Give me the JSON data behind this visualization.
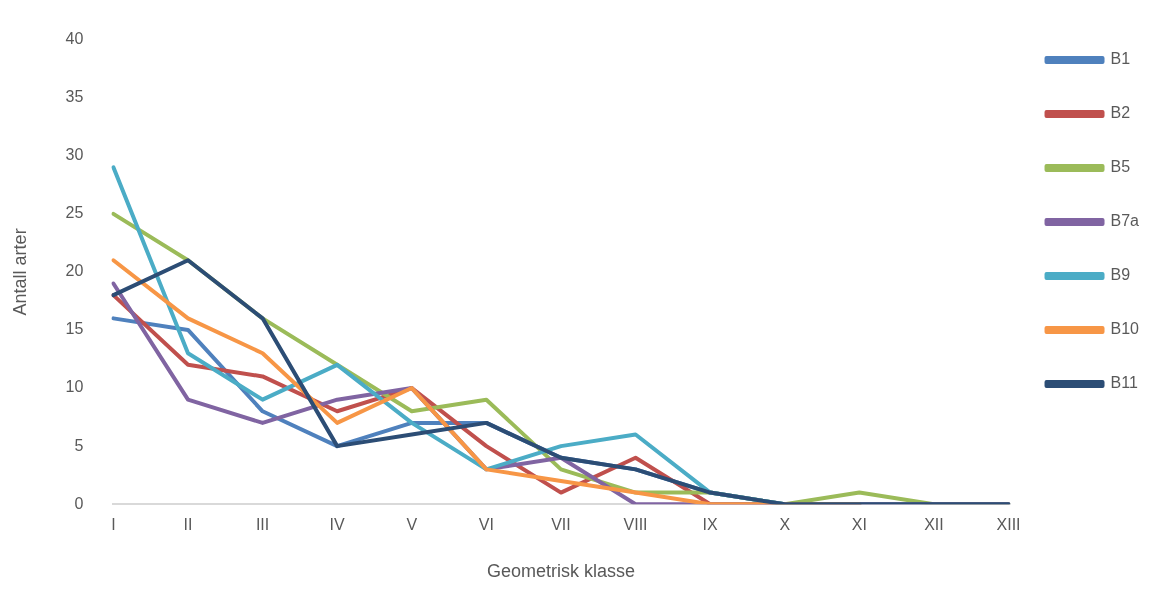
{
  "chart_data": {
    "type": "line",
    "xlabel": "Geometrisk klasse",
    "ylabel": "Antall arter",
    "categories": [
      "I",
      "II",
      "III",
      "IV",
      "V",
      "VI",
      "VII",
      "VIII",
      "IX",
      "X",
      "XI",
      "XII",
      "XIII"
    ],
    "series": [
      {
        "name": "B1",
        "color": "#4f81bd",
        "values": [
          16,
          15,
          8,
          5,
          7,
          7,
          4,
          3,
          1,
          0,
          0,
          null,
          null
        ]
      },
      {
        "name": "B2",
        "color": "#c0504d",
        "values": [
          18,
          12,
          11,
          8,
          10,
          5,
          1,
          4,
          0,
          0,
          0,
          null,
          null
        ]
      },
      {
        "name": "B5",
        "color": "#9bbb59",
        "values": [
          25,
          21,
          16,
          12,
          8,
          9,
          3,
          1,
          1,
          0,
          1,
          0,
          0
        ]
      },
      {
        "name": "B7a",
        "color": "#8064a2",
        "values": [
          19,
          9,
          7,
          9,
          10,
          3,
          4,
          0,
          0,
          0,
          0,
          0,
          0
        ]
      },
      {
        "name": "B9",
        "color": "#4bacc6",
        "values": [
          29,
          13,
          9,
          12,
          7,
          3,
          5,
          6,
          1,
          0,
          0,
          null,
          null
        ]
      },
      {
        "name": "B10",
        "color": "#f79646",
        "values": [
          21,
          16,
          13,
          7,
          10,
          3,
          2,
          1,
          0,
          0,
          0,
          null,
          null
        ]
      },
      {
        "name": "B11",
        "color": "#2c4d75",
        "values": [
          18,
          21,
          16,
          5,
          6,
          7,
          4,
          3,
          1,
          0,
          0,
          0,
          0
        ]
      }
    ],
    "ylim": [
      0,
      40
    ],
    "yticks": [
      0,
      5,
      10,
      15,
      20,
      25,
      30,
      35,
      40
    ],
    "grid": false,
    "legend": "right",
    "marker": "none",
    "line_style": "solid"
  }
}
